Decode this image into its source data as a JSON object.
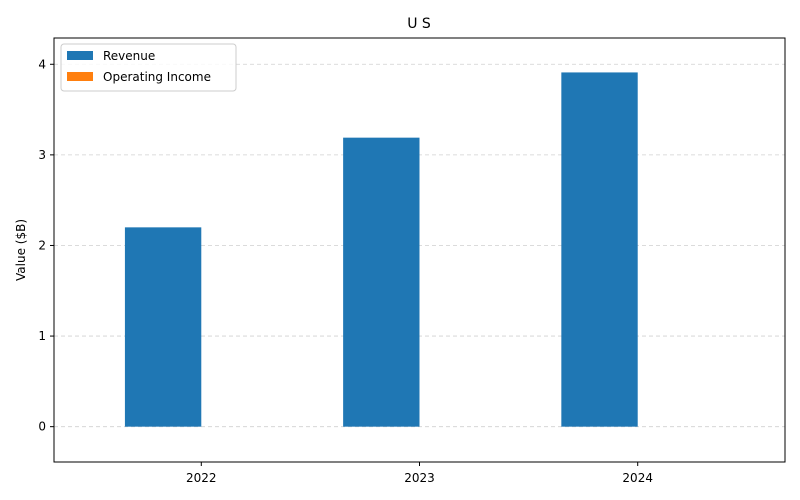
{
  "chart_data": {
    "type": "bar",
    "title": "U S",
    "xlabel": "",
    "ylabel": "Value ($B)",
    "categories": [
      "2022",
      "2023",
      "2024"
    ],
    "series": [
      {
        "name": "Revenue",
        "color": "#1f77b4",
        "values": [
          2.2,
          3.19,
          3.91
        ]
      },
      {
        "name": "Operating Income",
        "color": "#ff7f0e",
        "values": [
          0,
          0,
          0
        ]
      }
    ],
    "ylim": [
      -0.39,
      4.29
    ],
    "yticks": [
      0,
      1,
      2,
      3,
      4
    ],
    "grid": true,
    "legend_position": "top-left"
  }
}
